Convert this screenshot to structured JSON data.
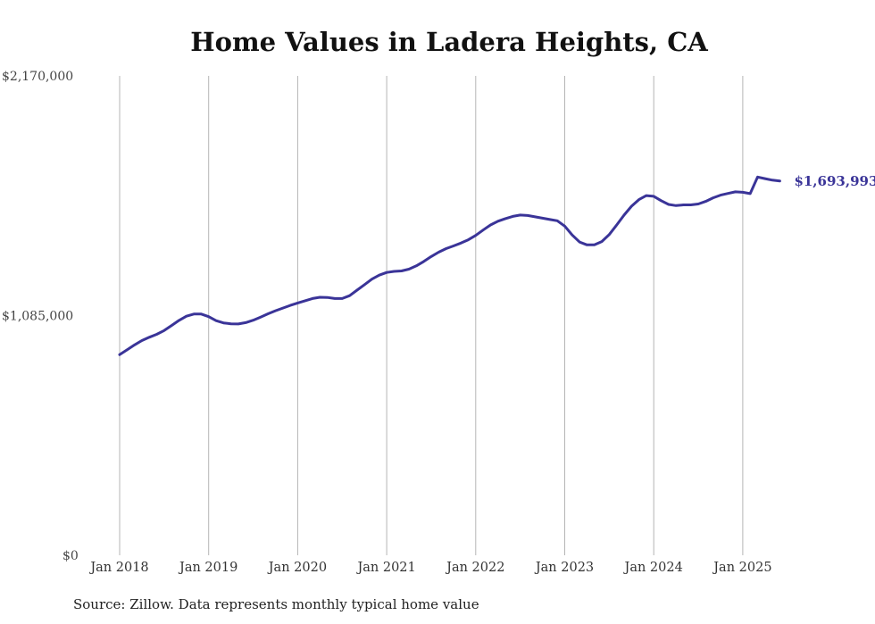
{
  "chart_data": {
    "type": "line",
    "title": "Home Values in Ladera Heights, CA",
    "source": "Source: Zillow. Data represents monthly typical home value",
    "y_ticks": [
      "$2,170,000",
      "$1,085,000",
      "$0"
    ],
    "y_tick_values": [
      2170000,
      1085000,
      0
    ],
    "ylim": [
      0,
      2170000
    ],
    "x_ticks": [
      "Jan 2018",
      "Jan 2019",
      "Jan 2020",
      "Jan 2021",
      "Jan 2022",
      "Jan 2023",
      "Jan 2024",
      "Jan 2025"
    ],
    "x_tick_values": [
      "2018-01",
      "2019-01",
      "2020-01",
      "2021-01",
      "2022-01",
      "2023-01",
      "2024-01",
      "2025-01"
    ],
    "xlim": [
      "2018-01",
      "2025-06"
    ],
    "grid": "vertical lines at x ticks",
    "line_color": "#3a3498",
    "end_label": "$1,693,993",
    "series": [
      {
        "points": [
          [
            "2018-01",
            908000
          ],
          [
            "2018-02",
            930000
          ],
          [
            "2018-03",
            952000
          ],
          [
            "2018-04",
            972000
          ],
          [
            "2018-05",
            987000
          ],
          [
            "2018-06",
            1000000
          ],
          [
            "2018-07",
            1017000
          ],
          [
            "2018-08",
            1040000
          ],
          [
            "2018-09",
            1063000
          ],
          [
            "2018-10",
            1082000
          ],
          [
            "2018-11",
            1092000
          ],
          [
            "2018-12",
            1092000
          ],
          [
            "2019-01",
            1080000
          ],
          [
            "2019-02",
            1062000
          ],
          [
            "2019-03",
            1052000
          ],
          [
            "2019-04",
            1048000
          ],
          [
            "2019-05",
            1047000
          ],
          [
            "2019-06",
            1053000
          ],
          [
            "2019-07",
            1064000
          ],
          [
            "2019-08",
            1078000
          ],
          [
            "2019-09",
            1093000
          ],
          [
            "2019-10",
            1107000
          ],
          [
            "2019-11",
            1119000
          ],
          [
            "2019-12",
            1131000
          ],
          [
            "2020-01",
            1142000
          ],
          [
            "2020-02",
            1152000
          ],
          [
            "2020-03",
            1162000
          ],
          [
            "2020-04",
            1168000
          ],
          [
            "2020-05",
            1167000
          ],
          [
            "2020-06",
            1162000
          ],
          [
            "2020-07",
            1162000
          ],
          [
            "2020-08",
            1175000
          ],
          [
            "2020-09",
            1200000
          ],
          [
            "2020-10",
            1225000
          ],
          [
            "2020-11",
            1250000
          ],
          [
            "2020-12",
            1268000
          ],
          [
            "2021-01",
            1280000
          ],
          [
            "2021-02",
            1285000
          ],
          [
            "2021-03",
            1287000
          ],
          [
            "2021-04",
            1295000
          ],
          [
            "2021-05",
            1310000
          ],
          [
            "2021-06",
            1330000
          ],
          [
            "2021-07",
            1352000
          ],
          [
            "2021-08",
            1372000
          ],
          [
            "2021-09",
            1388000
          ],
          [
            "2021-10",
            1400000
          ],
          [
            "2021-11",
            1413000
          ],
          [
            "2021-12",
            1428000
          ],
          [
            "2022-01",
            1448000
          ],
          [
            "2022-02",
            1472000
          ],
          [
            "2022-03",
            1495000
          ],
          [
            "2022-04",
            1512000
          ],
          [
            "2022-05",
            1524000
          ],
          [
            "2022-06",
            1534000
          ],
          [
            "2022-07",
            1540000
          ],
          [
            "2022-08",
            1538000
          ],
          [
            "2022-09",
            1532000
          ],
          [
            "2022-10",
            1526000
          ],
          [
            "2022-11",
            1520000
          ],
          [
            "2022-12",
            1514000
          ],
          [
            "2023-01",
            1490000
          ],
          [
            "2023-02",
            1450000
          ],
          [
            "2023-03",
            1418000
          ],
          [
            "2023-04",
            1405000
          ],
          [
            "2023-05",
            1405000
          ],
          [
            "2023-06",
            1420000
          ],
          [
            "2023-07",
            1452000
          ],
          [
            "2023-08",
            1495000
          ],
          [
            "2023-09",
            1540000
          ],
          [
            "2023-10",
            1580000
          ],
          [
            "2023-11",
            1610000
          ],
          [
            "2023-12",
            1628000
          ],
          [
            "2024-01",
            1625000
          ],
          [
            "2024-02",
            1605000
          ],
          [
            "2024-03",
            1588000
          ],
          [
            "2024-04",
            1583000
          ],
          [
            "2024-05",
            1586000
          ],
          [
            "2024-06",
            1586000
          ],
          [
            "2024-07",
            1590000
          ],
          [
            "2024-08",
            1602000
          ],
          [
            "2024-09",
            1618000
          ],
          [
            "2024-10",
            1630000
          ],
          [
            "2024-11",
            1638000
          ],
          [
            "2024-12",
            1645000
          ],
          [
            "2025-01",
            1643000
          ],
          [
            "2025-02",
            1637000
          ],
          [
            "2025-03",
            1712000
          ],
          [
            "2025-04",
            1705000
          ],
          [
            "2025-05",
            1698000
          ],
          [
            "2025-06",
            1693993
          ]
        ]
      }
    ]
  }
}
